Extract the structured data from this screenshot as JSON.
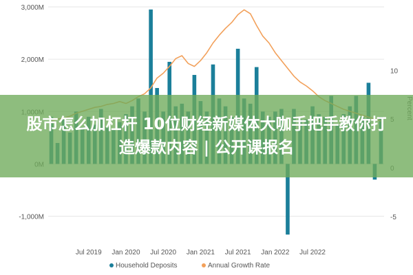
{
  "chart_data": {
    "type": "bar",
    "title": "",
    "xlabel": "",
    "ylabel_left": "",
    "ylabel_right": "Percent",
    "y_left_ticks": [
      {
        "v": 3000,
        "label": "3,000M"
      },
      {
        "v": 2000,
        "label": "2,000M"
      },
      {
        "v": 1000,
        "label": "1,000M"
      },
      {
        "v": 0,
        "label": "0M"
      },
      {
        "v": -1000,
        "label": "-1,000M"
      }
    ],
    "y_right_ticks": [
      {
        "v": 10,
        "label": "10"
      },
      {
        "v": 5,
        "label": "5"
      },
      {
        "v": 0,
        "label": "0"
      },
      {
        "v": -5,
        "label": "-5"
      }
    ],
    "ylim_left": [
      -1400,
      3000
    ],
    "ylim_right": [
      -7.1,
      16.5
    ],
    "x_tick_labels": [
      "Jul 2019",
      "Jan 2020",
      "Jul 2020",
      "Jan 2021",
      "Jul 2021",
      "Jan 2022",
      "Jul 2022"
    ],
    "x_tick_positions": [
      6,
      12,
      18,
      24,
      30,
      36,
      42
    ],
    "legend_position": "bottom",
    "series": [
      {
        "name": "Household Deposits",
        "type": "bar",
        "axis": "left",
        "color": "#1b7f9a",
        "values": [
          900,
          400,
          850,
          600,
          1000,
          700,
          900,
          750,
          1050,
          700,
          650,
          800,
          950,
          1100,
          1250,
          1000,
          2950,
          1450,
          1000,
          1950,
          1100,
          1150,
          1000,
          1700,
          1200,
          1000,
          1900,
          1250,
          1100,
          900,
          2200,
          1250,
          1150,
          1850,
          1000,
          900,
          1000,
          1050,
          -1350,
          1050,
          850,
          850,
          1100,
          950,
          900,
          1300,
          750,
          950,
          1100,
          1300,
          900,
          1550,
          -300,
          900
        ]
      },
      {
        "name": "Annual Growth Rate",
        "type": "line",
        "axis": "right",
        "color": "#f2a05a",
        "values": [
          4.8,
          5.0,
          5.1,
          5.3,
          5.6,
          5.8,
          6.0,
          6.2,
          6.3,
          6.5,
          6.6,
          6.8,
          6.6,
          6.9,
          7.3,
          7.6,
          8.2,
          9.2,
          9.7,
          10.4,
          11.2,
          11.5,
          10.7,
          10.4,
          11.0,
          11.8,
          12.8,
          13.6,
          14.3,
          14.9,
          15.7,
          16.2,
          15.8,
          14.6,
          13.5,
          12.8,
          11.8,
          11.0,
          10.2,
          9.4,
          8.8,
          8.4,
          7.9,
          7.3,
          6.9,
          6.6,
          6.3,
          6.0,
          5.8,
          5.6,
          5.4,
          5.2,
          5.0,
          4.8
        ]
      }
    ]
  },
  "overlay": {
    "line1": "股市怎么加杠杆 10位财经新媒体大咖手把手教你打",
    "line2": "造爆款内容 | 公开课报名"
  }
}
